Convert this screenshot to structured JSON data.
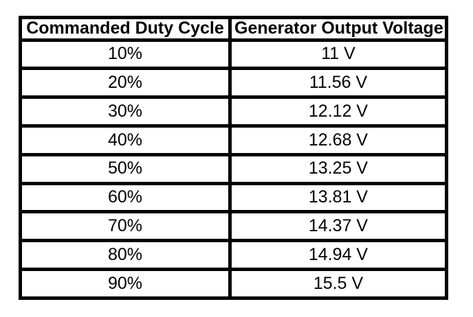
{
  "table": {
    "headers": [
      "Commanded Duty Cycle",
      "Generator Output Voltage"
    ],
    "rows": [
      [
        "10%",
        "11 V"
      ],
      [
        "20%",
        "11.56 V"
      ],
      [
        "30%",
        "12.12 V"
      ],
      [
        "40%",
        "12.68 V"
      ],
      [
        "50%",
        "13.25 V"
      ],
      [
        "60%",
        "13.81 V"
      ],
      [
        "70%",
        "14.37 V"
      ],
      [
        "80%",
        "14.94 V"
      ],
      [
        "90%",
        "15.5 V"
      ]
    ]
  },
  "colors": {
    "border": "#000000",
    "text": "#000000",
    "background": "#ffffff"
  },
  "chart_data": {
    "type": "table",
    "columns": [
      "Commanded Duty Cycle",
      "Generator Output Voltage"
    ],
    "rows": [
      [
        "10%",
        "11 V"
      ],
      [
        "20%",
        "11.56 V"
      ],
      [
        "30%",
        "12.12 V"
      ],
      [
        "40%",
        "12.68 V"
      ],
      [
        "50%",
        "13.25 V"
      ],
      [
        "60%",
        "13.81 V"
      ],
      [
        "70%",
        "14.37 V"
      ],
      [
        "80%",
        "14.94 V"
      ],
      [
        "90%",
        "15.5 V"
      ]
    ],
    "duty_cycle_percent": [
      10,
      20,
      30,
      40,
      50,
      60,
      70,
      80,
      90
    ],
    "generator_output_voltage_v": [
      11,
      11.56,
      12.12,
      12.68,
      13.25,
      13.81,
      14.37,
      14.94,
      15.5
    ]
  }
}
